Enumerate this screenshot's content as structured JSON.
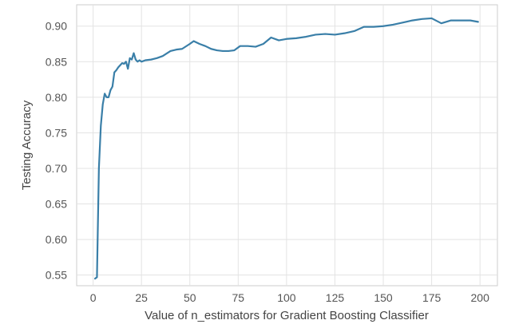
{
  "chart_data": {
    "type": "line",
    "title": "",
    "xlabel": "Value of n_estimators for Gradient Boosting Classifier",
    "ylabel": "Testing Accuracy",
    "xlim": [
      -8.5,
      209
    ],
    "ylim": [
      0.535,
      0.93
    ],
    "xticks": [
      0,
      25,
      50,
      75,
      100,
      125,
      150,
      175,
      200
    ],
    "xtick_labels": [
      "0",
      "25",
      "50",
      "75",
      "100",
      "125",
      "150",
      "175",
      "200"
    ],
    "yticks": [
      0.55,
      0.6,
      0.65,
      0.7,
      0.75,
      0.8,
      0.85,
      0.9
    ],
    "ytick_labels": [
      "0.55",
      "0.60",
      "0.65",
      "0.70",
      "0.75",
      "0.80",
      "0.85",
      "0.90"
    ],
    "grid": true,
    "line_color": "#3a7fa8",
    "series": [
      {
        "x": [
          1,
          2,
          3,
          4,
          5,
          6,
          7,
          8,
          9,
          10,
          11,
          12,
          13,
          14,
          15,
          16,
          17,
          18,
          19,
          20,
          21,
          22,
          23,
          24,
          25,
          27,
          30,
          33,
          36,
          40,
          43,
          46,
          50,
          52,
          55,
          58,
          61,
          64,
          67,
          70,
          73,
          76,
          80,
          84,
          88,
          92,
          96,
          100,
          105,
          110,
          115,
          120,
          125,
          130,
          135,
          140,
          145,
          150,
          155,
          160,
          165,
          170,
          175,
          180,
          185,
          190,
          195,
          199
        ],
        "y": [
          0.545,
          0.547,
          0.7,
          0.76,
          0.79,
          0.805,
          0.8,
          0.8,
          0.81,
          0.815,
          0.835,
          0.838,
          0.842,
          0.845,
          0.848,
          0.847,
          0.85,
          0.84,
          0.855,
          0.853,
          0.862,
          0.853,
          0.85,
          0.852,
          0.85,
          0.852,
          0.853,
          0.855,
          0.858,
          0.865,
          0.867,
          0.868,
          0.875,
          0.879,
          0.875,
          0.872,
          0.868,
          0.866,
          0.865,
          0.865,
          0.866,
          0.872,
          0.872,
          0.871,
          0.875,
          0.884,
          0.88,
          0.882,
          0.883,
          0.885,
          0.888,
          0.889,
          0.888,
          0.89,
          0.893,
          0.899,
          0.899,
          0.9,
          0.902,
          0.905,
          0.908,
          0.91,
          0.911,
          0.904,
          0.908,
          0.908,
          0.908,
          0.906
        ]
      }
    ]
  }
}
